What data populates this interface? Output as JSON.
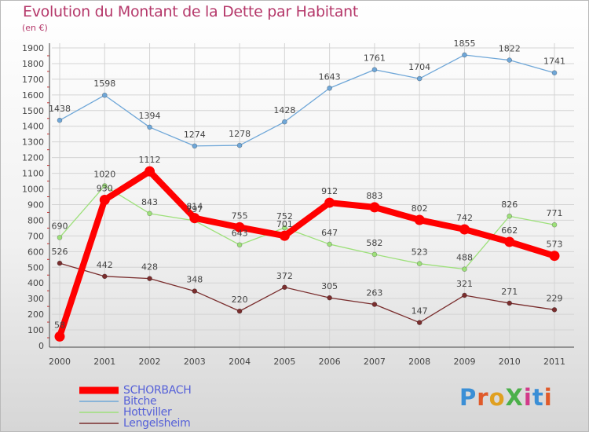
{
  "title": "Evolution du Montant de la Dette par Habitant",
  "subtitle": "(en €)",
  "logo": "ProXiti",
  "chart_data": {
    "type": "line",
    "x": [
      "2000",
      "2001",
      "2002",
      "2003",
      "2004",
      "2005",
      "2006",
      "2007",
      "2008",
      "2009",
      "2010",
      "2011"
    ],
    "ylim": [
      0,
      1900
    ],
    "yticks": [
      0,
      100,
      200,
      300,
      400,
      500,
      600,
      700,
      800,
      900,
      1000,
      1100,
      1200,
      1300,
      1400,
      1500,
      1600,
      1700,
      1800,
      1900
    ],
    "grid": true,
    "legend": "bottom-left",
    "series": [
      {
        "name": "SCHORBACH",
        "color": "#ff0000",
        "values": [
          58,
          930,
          1112,
          814,
          755,
          701,
          912,
          883,
          802,
          742,
          662,
          573
        ]
      },
      {
        "name": "Bitche",
        "color": "#6fa7d8",
        "values": [
          1438,
          1598,
          1394,
          1274,
          1278,
          1428,
          1643,
          1761,
          1704,
          1855,
          1822,
          1741
        ]
      },
      {
        "name": "Hottviller",
        "color": "#9de07a",
        "values": [
          690,
          1020,
          843,
          797,
          643,
          752,
          647,
          582,
          523,
          488,
          826,
          771
        ]
      },
      {
        "name": "Lengelsheim",
        "color": "#7a2e2e",
        "values": [
          526,
          442,
          428,
          348,
          220,
          372,
          305,
          263,
          147,
          321,
          271,
          229
        ]
      }
    ]
  }
}
